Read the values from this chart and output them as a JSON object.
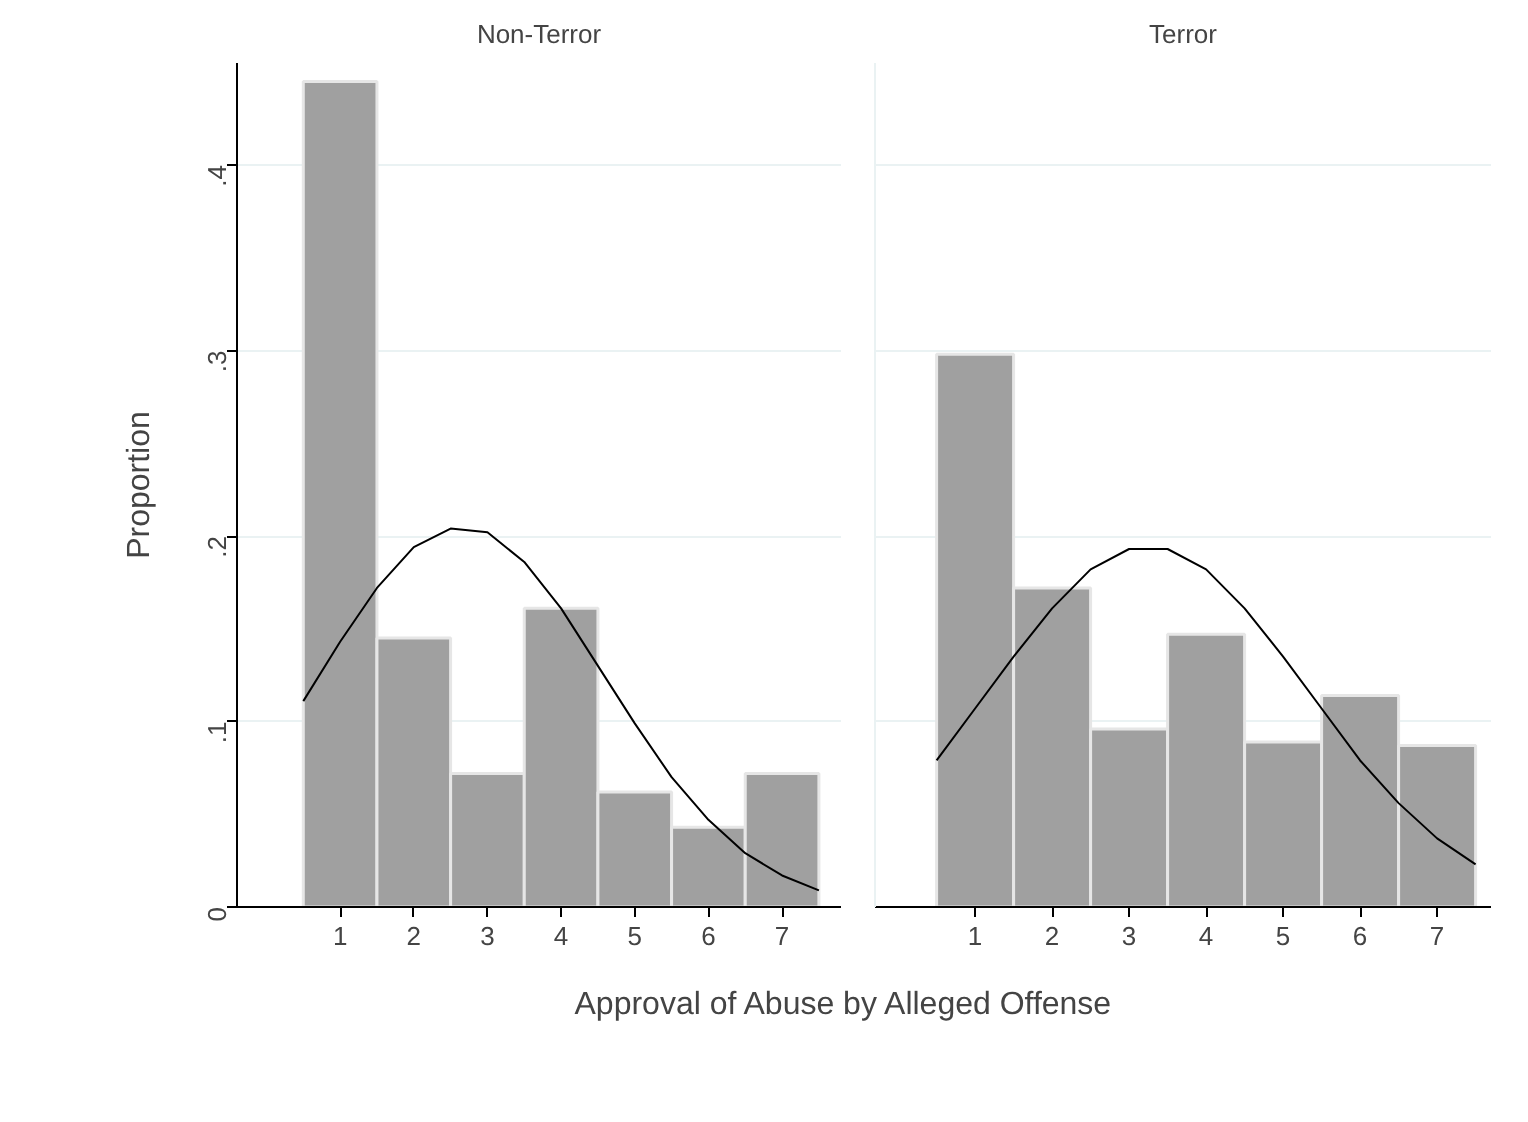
{
  "chart_data": [
    {
      "type": "histogram",
      "title": "Non-Terror",
      "ylabel": "Proportion",
      "xlabel": "Approval of Abuse by Alleged Offense",
      "bins": [
        0.5,
        1.5,
        2.5,
        3.5,
        4.5,
        5.5,
        6.5,
        7.5
      ],
      "values": [
        0.445,
        0.145,
        0.072,
        0.161,
        0.062,
        0.043,
        0.072
      ],
      "color": "#a0a0a0",
      "series": [
        {
          "type": "line",
          "color": "#000000",
          "x": [
            0.5,
            1.0,
            1.5,
            2.0,
            2.5,
            3.0,
            3.5,
            4.0,
            4.5,
            5.0,
            5.5,
            6.0,
            6.5,
            7.0,
            7.5
          ],
          "values": [
            0.111,
            0.143,
            0.172,
            0.194,
            0.204,
            0.202,
            0.186,
            0.161,
            0.13,
            0.099,
            0.07,
            0.047,
            0.029,
            0.017,
            0.009
          ]
        }
      ],
      "xlim": [
        -0.4,
        7.8
      ],
      "xticks": [
        1,
        2,
        3,
        4,
        5,
        6,
        7
      ],
      "ylim": [
        0,
        0.455
      ],
      "yticks": [
        0,
        {
          "value": 0.1,
          "label": ".1"
        },
        {
          "value": 0.2,
          "label": ".2"
        },
        {
          "value": 0.3,
          "label": ".3"
        },
        {
          "value": 0.4,
          "label": ".4"
        }
      ],
      "grid": "y",
      "marker": "none",
      "line_style": "solid"
    },
    {
      "type": "histogram",
      "title": "Terror",
      "bins": [
        0.5,
        1.5,
        2.5,
        3.5,
        4.5,
        5.5,
        6.5,
        7.5
      ],
      "values": [
        0.298,
        0.172,
        0.096,
        0.147,
        0.089,
        0.114,
        0.087
      ],
      "color": "#a0a0a0",
      "series": [
        {
          "type": "line",
          "color": "#000000",
          "x": [
            0.5,
            1.0,
            1.5,
            2.0,
            2.5,
            3.0,
            3.5,
            4.0,
            4.5,
            5.0,
            5.5,
            6.0,
            6.5,
            7.0,
            7.5
          ],
          "values": [
            0.079,
            0.107,
            0.135,
            0.161,
            0.182,
            0.193,
            0.193,
            0.182,
            0.161,
            0.135,
            0.107,
            0.079,
            0.056,
            0.037,
            0.023
          ]
        }
      ],
      "xlim": [
        -0.3,
        7.7
      ],
      "xticks": [
        1,
        2,
        3,
        4,
        5,
        6,
        7
      ],
      "ylim": [
        0,
        0.455
      ],
      "yticks": [
        {
          "value": 0,
          "label": null
        },
        {
          "value": 0.1,
          "label": null
        },
        {
          "value": 0.2,
          "label": null
        },
        {
          "value": 0.3,
          "label": null
        },
        {
          "value": 0.4,
          "label": null
        }
      ],
      "grid": "y",
      "tick_labels": "x",
      "marker": "none",
      "line_style": "solid"
    }
  ]
}
